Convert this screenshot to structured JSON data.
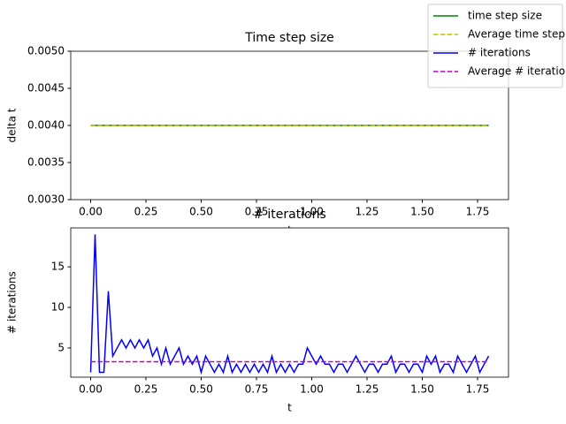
{
  "chart_data": [
    {
      "type": "line",
      "title": "Time step size",
      "y_label": "delta t",
      "x_label": "t",
      "x": [
        0,
        1.8
      ],
      "series": [
        {
          "name": "time step size",
          "color": "#008000",
          "dashed": false,
          "values": [
            0.004,
            0.004
          ]
        },
        {
          "name": "Average time step size",
          "color": "#bfbf00",
          "dashed": true,
          "values": [
            0.004,
            0.004
          ]
        }
      ],
      "xlim": [
        -0.09,
        1.89
      ],
      "xticks": [
        {
          "value": 0,
          "label": "0.00"
        },
        0.25,
        {
          "value": 0.5,
          "label": "0.50"
        },
        0.75,
        {
          "value": 1,
          "label": "1.00"
        },
        1.25,
        {
          "value": 1.5,
          "label": "1.50"
        },
        1.75
      ],
      "ylim": [
        0.003,
        0.005
      ],
      "yticks": [
        {
          "value": 0.003,
          "label": "0.0030"
        },
        0.0035,
        {
          "value": 0.004,
          "label": "0.0040"
        },
        0.0045,
        {
          "value": 0.005,
          "label": "0.0050"
        }
      ],
      "legend": "upper right"
    },
    {
      "type": "line",
      "title": "# iterations",
      "y_label": "# iterations",
      "x_label": "t",
      "x": [
        0,
        0.02,
        0.04,
        0.06,
        0.08,
        0.1,
        0.12,
        0.14,
        0.16,
        0.18,
        0.2,
        0.22,
        0.24,
        0.26,
        0.28,
        0.3,
        0.32,
        0.34,
        0.36,
        0.38,
        0.4,
        0.42,
        0.44,
        0.46,
        0.48,
        0.5,
        0.52,
        0.54,
        0.56,
        0.58,
        0.6,
        0.62,
        0.64,
        0.66,
        0.68,
        0.7,
        0.72,
        0.74,
        0.76,
        0.78,
        0.8,
        0.82,
        0.84,
        0.86,
        0.88,
        0.9,
        0.92,
        0.94,
        0.96,
        0.98,
        1,
        1.02,
        1.04,
        1.06,
        1.08,
        1.1,
        1.12,
        1.14,
        1.16,
        1.18,
        1.2,
        1.22,
        1.24,
        1.26,
        1.28,
        1.3,
        1.32,
        1.34,
        1.36,
        1.38,
        1.4,
        1.42,
        1.44,
        1.46,
        1.48,
        1.5,
        1.52,
        1.54,
        1.56,
        1.58,
        1.6,
        1.62,
        1.64,
        1.66,
        1.68,
        1.7,
        1.72,
        1.74,
        1.76,
        1.78,
        1.8
      ],
      "series": [
        {
          "name": "# iterations",
          "color": "#0000ff",
          "dashed": false,
          "values": [
            2,
            19,
            2,
            2,
            12,
            4,
            5,
            6,
            5,
            6,
            5,
            6,
            5,
            6,
            4,
            5,
            3,
            5,
            3,
            4,
            5,
            3,
            4,
            3,
            4,
            2,
            4,
            3,
            2,
            3,
            2,
            4,
            2,
            3,
            2,
            3,
            2,
            3,
            2,
            3,
            2,
            4,
            2,
            3,
            2,
            3,
            2,
            3,
            3,
            5,
            4,
            3,
            4,
            3,
            3,
            2,
            3,
            3,
            2,
            3,
            4,
            3,
            2,
            3,
            3,
            2,
            3,
            3,
            4,
            2,
            3,
            3,
            2,
            3,
            3,
            2,
            4,
            3,
            4,
            2,
            3,
            3,
            2,
            4,
            3,
            2,
            3,
            4,
            2,
            3,
            4
          ]
        },
        {
          "name": "Average # iterations",
          "color": "#bf00bf",
          "dashed": true,
          "values": [
            3.3,
            3.3,
            3.3,
            3.3,
            3.3,
            3.3,
            3.3,
            3.3,
            3.3,
            3.3,
            3.3,
            3.3,
            3.3,
            3.3,
            3.3,
            3.3,
            3.3,
            3.3,
            3.3,
            3.3,
            3.3,
            3.3,
            3.3,
            3.3,
            3.3,
            3.3,
            3.3,
            3.3,
            3.3,
            3.3,
            3.3,
            3.3,
            3.3,
            3.3,
            3.3,
            3.3,
            3.3,
            3.3,
            3.3,
            3.3,
            3.3,
            3.3,
            3.3,
            3.3,
            3.3,
            3.3,
            3.3,
            3.3,
            3.3,
            3.3,
            3.3,
            3.3,
            3.3,
            3.3,
            3.3,
            3.3,
            3.3,
            3.3,
            3.3,
            3.3,
            3.3,
            3.3,
            3.3,
            3.3,
            3.3,
            3.3,
            3.3,
            3.3,
            3.3,
            3.3,
            3.3,
            3.3,
            3.3,
            3.3,
            3.3,
            3.3,
            3.3,
            3.3,
            3.3,
            3.3,
            3.3,
            3.3,
            3.3,
            3.3,
            3.3,
            3.3,
            3.3,
            3.3,
            3.3,
            3.3,
            3.3
          ]
        }
      ],
      "xlim": [
        -0.09,
        1.89
      ],
      "xticks": [
        {
          "value": 0,
          "label": "0.00"
        },
        0.25,
        {
          "value": 0.5,
          "label": "0.50"
        },
        0.75,
        {
          "value": 1,
          "label": "1.00"
        },
        1.25,
        {
          "value": 1.5,
          "label": "1.50"
        },
        1.75
      ],
      "ylim": [
        1.4,
        19.8
      ],
      "yticks": [
        5,
        10,
        15
      ]
    }
  ]
}
